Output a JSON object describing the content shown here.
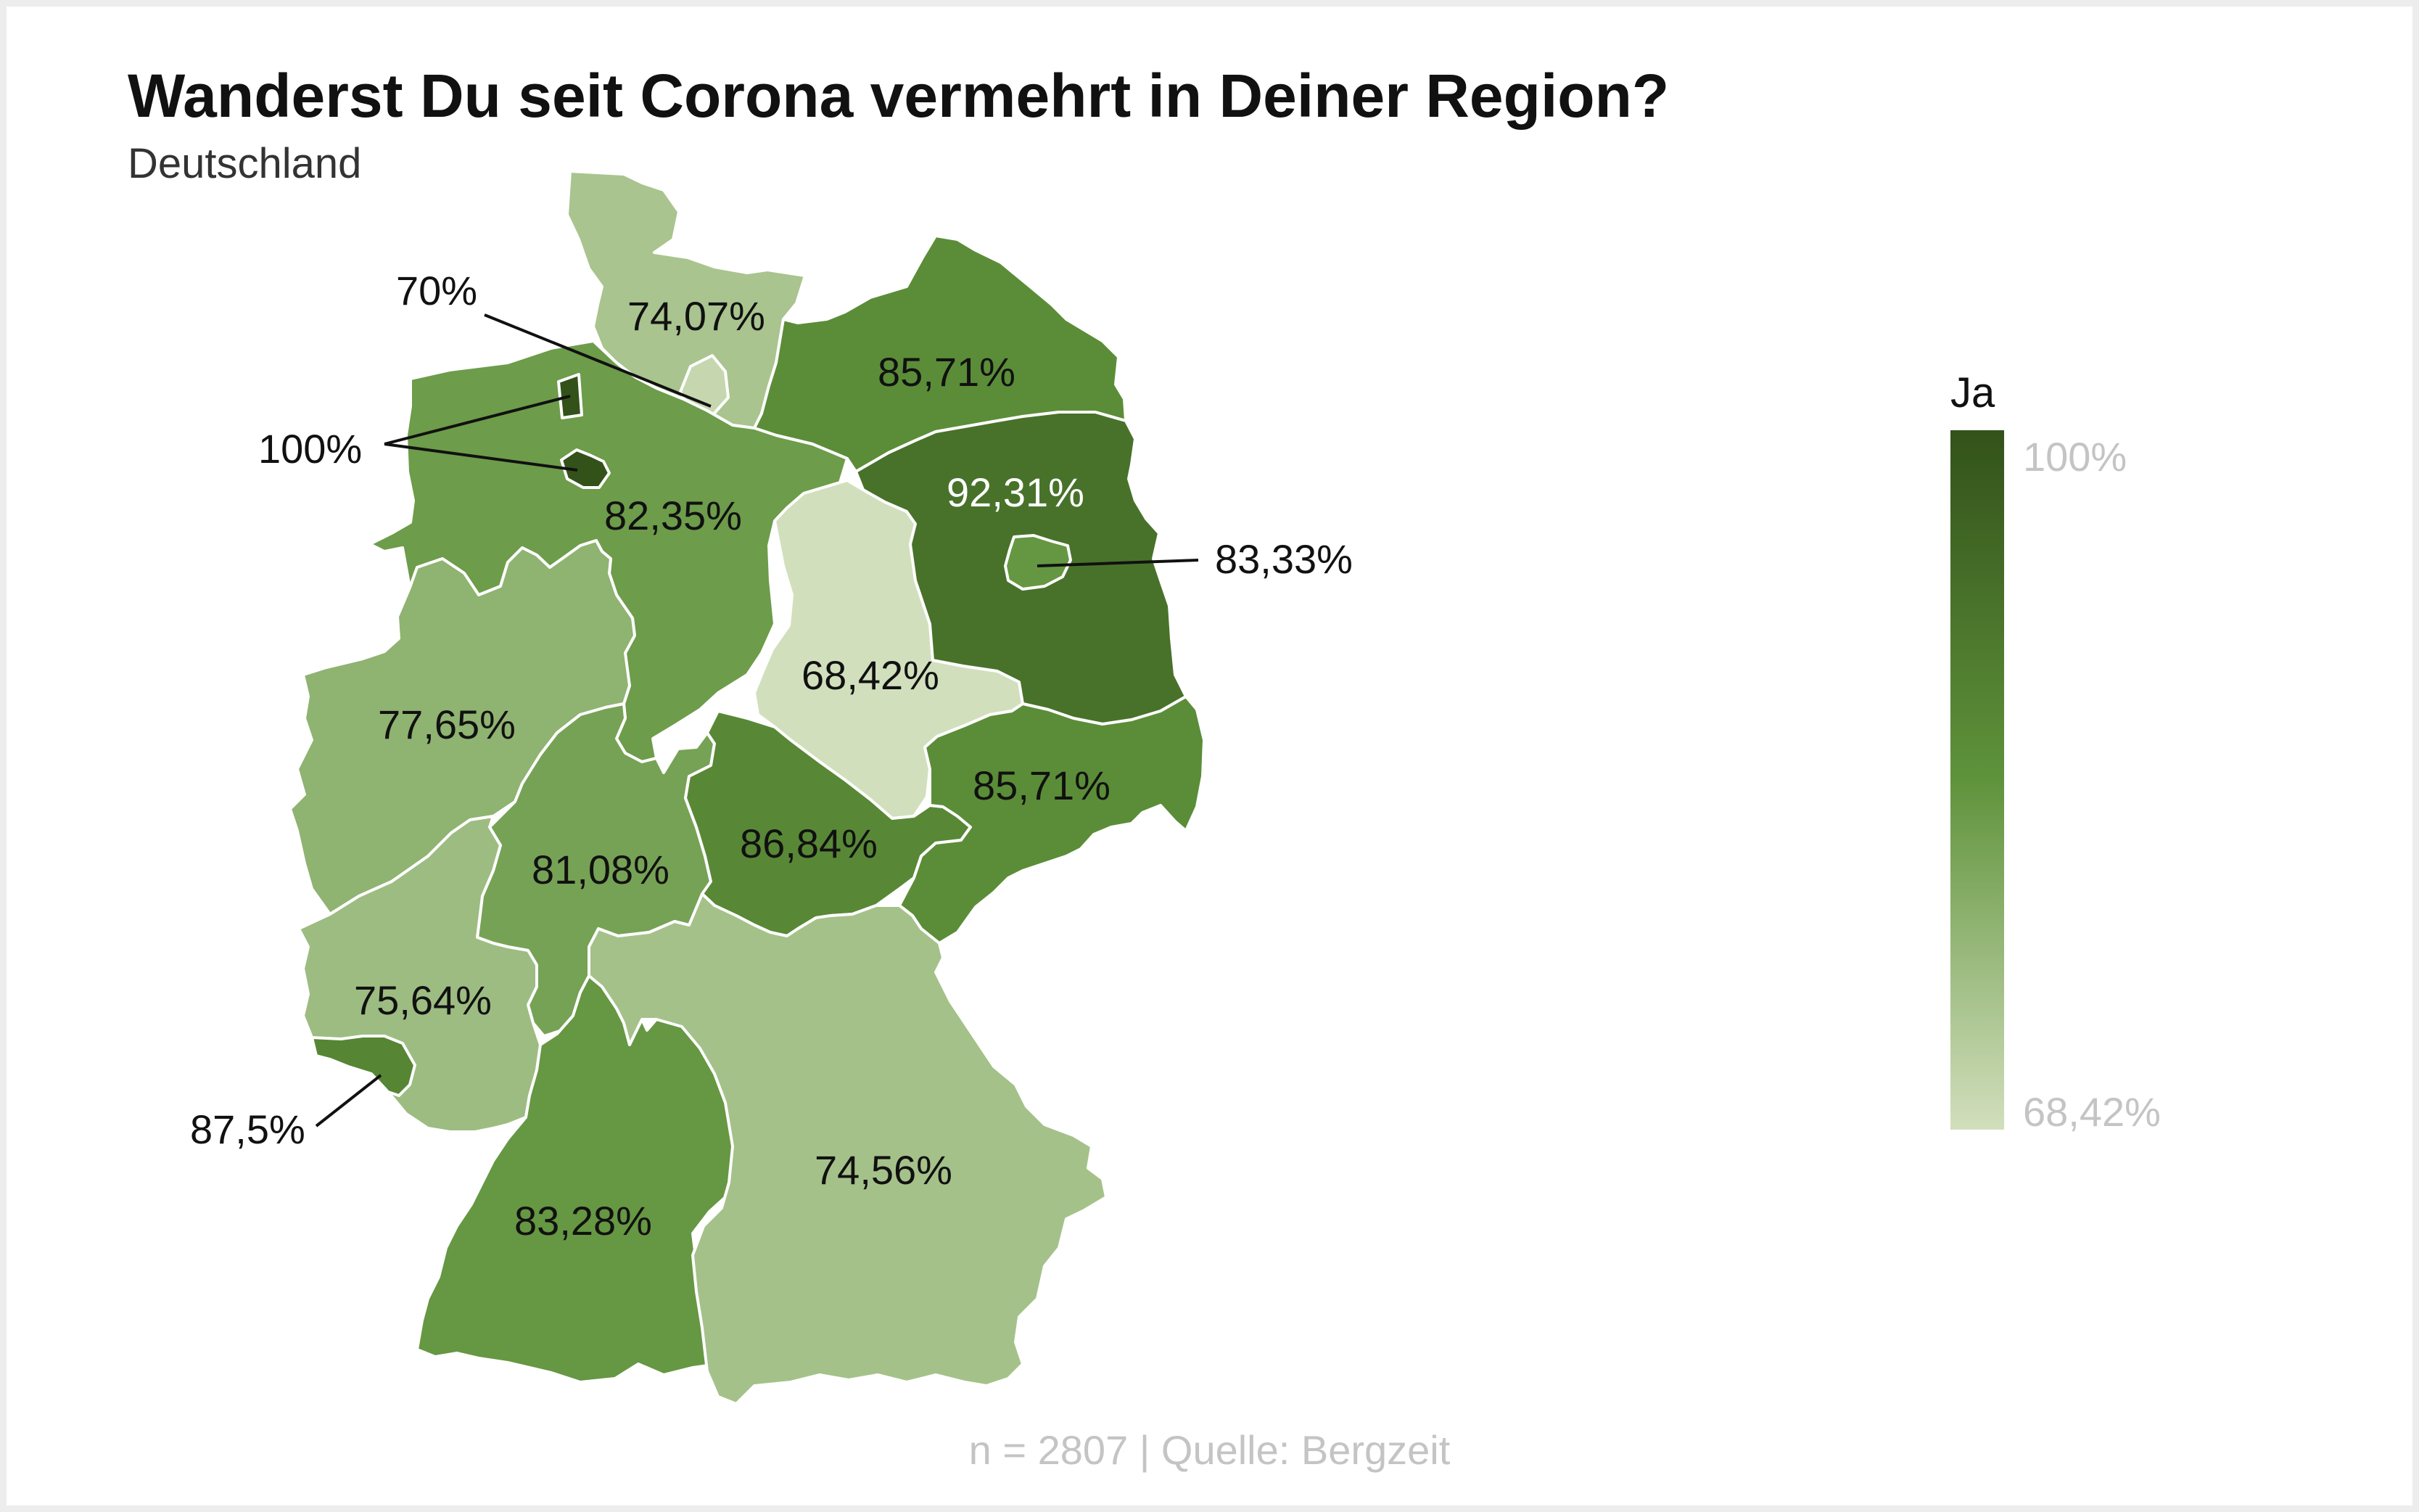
{
  "title": "Wanderst Du seit Corona vermehrt in Deiner Region?",
  "subtitle": "Deutschland",
  "legend": {
    "title": "Ja",
    "max_label": "100%",
    "min_label": "68,42%",
    "min_value": 68.42,
    "max_value": 100
  },
  "footer": "n = 2807 | Quelle: Bergzeit",
  "colors": {
    "dark": "#33521a",
    "mid": "#5f933b",
    "light": "#d2dfbd",
    "label_light_text": "#ffffff",
    "label_dark_text": "#111111",
    "muted_text": "#c4c4c4"
  },
  "regions": [
    {
      "id": "schleswig-holstein",
      "value": 74.07,
      "label": "74,07%"
    },
    {
      "id": "hamburg",
      "value": 70,
      "label": "70%"
    },
    {
      "id": "mecklenburg-vorpommern",
      "value": 85.71,
      "label": "85,71%"
    },
    {
      "id": "bremen",
      "value": 100,
      "label": "100%"
    },
    {
      "id": "niedersachsen",
      "value": 82.35,
      "label": "82,35%"
    },
    {
      "id": "brandenburg",
      "value": 92.31,
      "label": "92,31%"
    },
    {
      "id": "berlin",
      "value": 83.33,
      "label": "83,33%"
    },
    {
      "id": "sachsen-anhalt",
      "value": 68.42,
      "label": "68,42%"
    },
    {
      "id": "nordrhein-westfalen",
      "value": 77.65,
      "label": "77,65%"
    },
    {
      "id": "sachsen",
      "value": 85.71,
      "label": "85,71%"
    },
    {
      "id": "thueringen",
      "value": 86.84,
      "label": "86,84%"
    },
    {
      "id": "hessen",
      "value": 81.08,
      "label": "81,08%"
    },
    {
      "id": "rheinland-pfalz",
      "value": 75.64,
      "label": "75,64%"
    },
    {
      "id": "saarland",
      "value": 87.5,
      "label": "87,5%"
    },
    {
      "id": "baden-wuerttemberg",
      "value": 83.28,
      "label": "83,28%"
    },
    {
      "id": "bayern",
      "value": 74.56,
      "label": "74,56%"
    }
  ]
}
